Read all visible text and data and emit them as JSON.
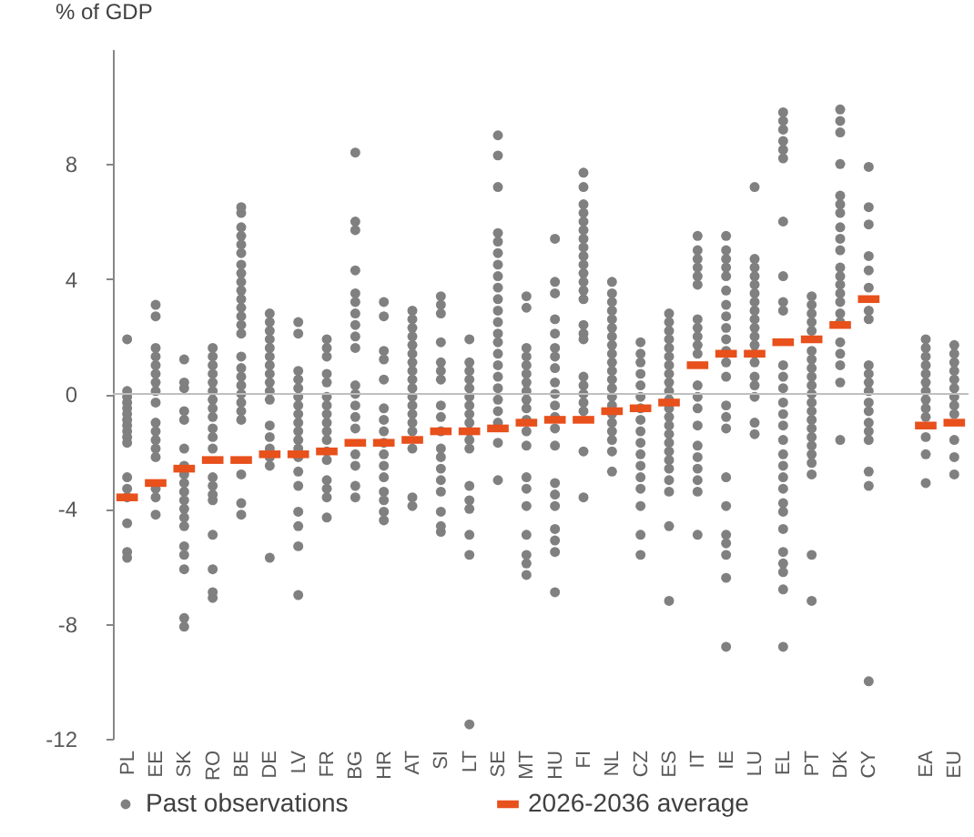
{
  "chart_data": {
    "type": "scatter",
    "ylabel": "% of GDP",
    "categories": [
      "PL",
      "EE",
      "SK",
      "RO",
      "BE",
      "DE",
      "LV",
      "FR",
      "BG",
      "HR",
      "AT",
      "SI",
      "LT",
      "SE",
      "MT",
      "HU",
      "FI",
      "NL",
      "CZ",
      "ES",
      "IT",
      "IE",
      "LU",
      "EL",
      "PT",
      "DK",
      "CY",
      null,
      "EA",
      "EU"
    ],
    "ylim": [
      -12,
      12
    ],
    "yticks": [
      -12,
      -8,
      -4,
      0,
      4,
      8
    ],
    "grid": false,
    "legend": "bottom",
    "ref_lines": [
      {
        "axis": "y",
        "value": 0,
        "color": "#bfbfbf"
      }
    ],
    "series": [
      {
        "name": "Past observations",
        "color": "#808080",
        "marker": "circle",
        "x": [
          "PL",
          "PL",
          "PL",
          "PL",
          "PL",
          "PL",
          "PL",
          "PL",
          "PL",
          "PL",
          "PL",
          "PL",
          "PL",
          "PL",
          "PL",
          "PL",
          "PL",
          "EE",
          "EE",
          "EE",
          "EE",
          "EE",
          "EE",
          "EE",
          "EE",
          "EE",
          "EE",
          "EE",
          "EE",
          "EE",
          "EE",
          "EE",
          "EE",
          "EE",
          "SK",
          "SK",
          "SK",
          "SK",
          "SK",
          "SK",
          "SK",
          "SK",
          "SK",
          "SK",
          "SK",
          "SK",
          "SK",
          "SK",
          "SK",
          "SK",
          "SK",
          "SK",
          "SK",
          "RO",
          "RO",
          "RO",
          "RO",
          "RO",
          "RO",
          "RO",
          "RO",
          "RO",
          "RO",
          "RO",
          "RO",
          "RO",
          "RO",
          "RO",
          "RO",
          "RO",
          "RO",
          "RO",
          "RO",
          "BE",
          "BE",
          "BE",
          "BE",
          "BE",
          "BE",
          "BE",
          "BE",
          "BE",
          "BE",
          "BE",
          "BE",
          "BE",
          "BE",
          "BE",
          "BE",
          "BE",
          "BE",
          "BE",
          "BE",
          "BE",
          "BE",
          "BE",
          "BE",
          "BE",
          "BE",
          "DE",
          "DE",
          "DE",
          "DE",
          "DE",
          "DE",
          "DE",
          "DE",
          "DE",
          "DE",
          "DE",
          "DE",
          "DE",
          "DE",
          "DE",
          "DE",
          "DE",
          "LV",
          "LV",
          "LV",
          "LV",
          "LV",
          "LV",
          "LV",
          "LV",
          "LV",
          "LV",
          "LV",
          "LV",
          "LV",
          "LV",
          "LV",
          "LV",
          "LV",
          "LV",
          "LV",
          "FR",
          "FR",
          "FR",
          "FR",
          "FR",
          "FR",
          "FR",
          "FR",
          "FR",
          "FR",
          "FR",
          "FR",
          "FR",
          "FR",
          "FR",
          "FR",
          "FR",
          "BG",
          "BG",
          "BG",
          "BG",
          "BG",
          "BG",
          "BG",
          "BG",
          "BG",
          "BG",
          "BG",
          "BG",
          "BG",
          "BG",
          "BG",
          "BG",
          "BG",
          "BG",
          "BG",
          "HR",
          "HR",
          "HR",
          "HR",
          "HR",
          "HR",
          "HR",
          "HR",
          "HR",
          "HR",
          "HR",
          "HR",
          "HR",
          "HR",
          "HR",
          "HR",
          "AT",
          "AT",
          "AT",
          "AT",
          "AT",
          "AT",
          "AT",
          "AT",
          "AT",
          "AT",
          "AT",
          "AT",
          "AT",
          "AT",
          "AT",
          "AT",
          "AT",
          "AT",
          "SI",
          "SI",
          "SI",
          "SI",
          "SI",
          "SI",
          "SI",
          "SI",
          "SI",
          "SI",
          "SI",
          "SI",
          "SI",
          "SI",
          "SI",
          "SI",
          "SI",
          "SI",
          "LT",
          "LT",
          "LT",
          "LT",
          "LT",
          "LT",
          "LT",
          "LT",
          "LT",
          "LT",
          "LT",
          "LT",
          "LT",
          "LT",
          "LT",
          "LT",
          "LT",
          "LT",
          "SE",
          "SE",
          "SE",
          "SE",
          "SE",
          "SE",
          "SE",
          "SE",
          "SE",
          "SE",
          "SE",
          "SE",
          "SE",
          "SE",
          "SE",
          "SE",
          "SE",
          "SE",
          "SE",
          "SE",
          "SE",
          "SE",
          "SE",
          "MT",
          "MT",
          "MT",
          "MT",
          "MT",
          "MT",
          "MT",
          "MT",
          "MT",
          "MT",
          "MT",
          "MT",
          "MT",
          "MT",
          "MT",
          "MT",
          "MT",
          "MT",
          "MT",
          "MT",
          "HU",
          "HU",
          "HU",
          "HU",
          "HU",
          "HU",
          "HU",
          "HU",
          "HU",
          "HU",
          "HU",
          "HU",
          "HU",
          "HU",
          "HU",
          "HU",
          "HU",
          "HU",
          "HU",
          "HU",
          "HU",
          "FI",
          "FI",
          "FI",
          "FI",
          "FI",
          "FI",
          "FI",
          "FI",
          "FI",
          "FI",
          "FI",
          "FI",
          "FI",
          "FI",
          "FI",
          "FI",
          "FI",
          "FI",
          "FI",
          "FI",
          "FI",
          "FI",
          "FI",
          "FI",
          "NL",
          "NL",
          "NL",
          "NL",
          "NL",
          "NL",
          "NL",
          "NL",
          "NL",
          "NL",
          "NL",
          "NL",
          "NL",
          "NL",
          "NL",
          "NL",
          "NL",
          "NL",
          "NL",
          "NL",
          "NL",
          "CZ",
          "CZ",
          "CZ",
          "CZ",
          "CZ",
          "CZ",
          "CZ",
          "CZ",
          "CZ",
          "CZ",
          "CZ",
          "CZ",
          "CZ",
          "CZ",
          "CZ",
          "CZ",
          "CZ",
          "ES",
          "ES",
          "ES",
          "ES",
          "ES",
          "ES",
          "ES",
          "ES",
          "ES",
          "ES",
          "ES",
          "ES",
          "ES",
          "ES",
          "ES",
          "ES",
          "ES",
          "ES",
          "ES",
          "ES",
          "ES",
          "ES",
          "ES",
          "IT",
          "IT",
          "IT",
          "IT",
          "IT",
          "IT",
          "IT",
          "IT",
          "IT",
          "IT",
          "IT",
          "IT",
          "IT",
          "IT",
          "IT",
          "IT",
          "IT",
          "IT",
          "IT",
          "IT",
          "IT",
          "IE",
          "IE",
          "IE",
          "IE",
          "IE",
          "IE",
          "IE",
          "IE",
          "IE",
          "IE",
          "IE",
          "IE",
          "IE",
          "IE",
          "IE",
          "IE",
          "IE",
          "IE",
          "IE",
          "IE",
          "IE",
          "IE",
          "IE",
          "LU",
          "LU",
          "LU",
          "LU",
          "LU",
          "LU",
          "LU",
          "LU",
          "LU",
          "LU",
          "LU",
          "LU",
          "LU",
          "LU",
          "LU",
          "LU",
          "LU",
          "LU",
          "LU",
          "EL",
          "EL",
          "EL",
          "EL",
          "EL",
          "EL",
          "EL",
          "EL",
          "EL",
          "EL",
          "EL",
          "EL",
          "EL",
          "EL",
          "EL",
          "EL",
          "EL",
          "EL",
          "EL",
          "EL",
          "EL",
          "EL",
          "EL",
          "EL",
          "EL",
          "EL",
          "EL",
          "EL",
          "EL",
          "PT",
          "PT",
          "PT",
          "PT",
          "PT",
          "PT",
          "PT",
          "PT",
          "PT",
          "PT",
          "PT",
          "PT",
          "PT",
          "PT",
          "PT",
          "PT",
          "PT",
          "PT",
          "PT",
          "PT",
          "PT",
          "PT",
          "DK",
          "DK",
          "DK",
          "DK",
          "DK",
          "DK",
          "DK",
          "DK",
          "DK",
          "DK",
          "DK",
          "DK",
          "DK",
          "DK",
          "DK",
          "DK",
          "DK",
          "DK",
          "DK",
          "DK",
          "DK",
          "DK",
          "CY",
          "CY",
          "CY",
          "CY",
          "CY",
          "CY",
          "CY",
          "CY",
          "CY",
          "CY",
          "CY",
          "CY",
          "CY",
          "CY",
          "CY",
          "CY",
          "CY",
          "CY",
          "CY",
          "CY",
          "EA",
          "EA",
          "EA",
          "EA",
          "EA",
          "EA",
          "EA",
          "EA",
          "EA",
          "EA",
          "EA",
          "EA",
          "EA",
          "EU",
          "EU",
          "EU",
          "EU",
          "EU",
          "EU",
          "EU",
          "EU",
          "EU",
          "EU",
          "EU",
          "EU"
        ],
        "values": [
          1.9,
          0.1,
          -0.1,
          -0.3,
          -0.5,
          -0.7,
          -0.9,
          -1.1,
          -1.3,
          -1.5,
          -1.7,
          -2.9,
          -3.3,
          -3.6,
          -4.5,
          -5.5,
          -5.7,
          3.1,
          2.7,
          1.6,
          1.3,
          1.0,
          0.7,
          0.4,
          0.1,
          -0.3,
          -1.0,
          -1.3,
          -1.6,
          -1.9,
          -2.2,
          -3.3,
          -3.6,
          -4.2,
          1.2,
          0.4,
          0.2,
          -0.6,
          -0.9,
          -1.9,
          -2.5,
          -2.8,
          -3.1,
          -3.4,
          -3.7,
          -4.0,
          -4.3,
          -4.6,
          -5.3,
          -5.6,
          -6.1,
          -7.8,
          -8.1,
          1.6,
          1.3,
          1.0,
          0.7,
          0.4,
          0.1,
          -0.2,
          -0.5,
          -0.8,
          -1.2,
          -1.5,
          -1.9,
          -2.9,
          -3.2,
          -3.5,
          -3.7,
          -4.9,
          -6.1,
          -6.9,
          -7.1,
          6.5,
          6.3,
          5.8,
          5.5,
          5.2,
          4.9,
          4.5,
          4.2,
          3.9,
          3.6,
          3.3,
          3.0,
          2.7,
          2.4,
          2.1,
          1.3,
          0.9,
          0.6,
          0.3,
          0.0,
          -0.3,
          -0.6,
          -0.9,
          -2.8,
          -3.8,
          -4.2,
          2.8,
          2.5,
          2.2,
          1.9,
          1.6,
          1.3,
          1.0,
          0.7,
          0.4,
          0.1,
          -0.2,
          -1.1,
          -1.5,
          -1.9,
          -2.2,
          -2.5,
          -5.7,
          2.5,
          2.1,
          0.8,
          0.5,
          0.2,
          -0.1,
          -0.4,
          -0.7,
          -1.0,
          -1.3,
          -1.6,
          -1.9,
          -2.2,
          -2.7,
          -3.2,
          -4.1,
          -4.6,
          -5.3,
          -7.0,
          1.9,
          1.6,
          1.3,
          0.7,
          0.4,
          -0.1,
          -0.4,
          -0.7,
          -1.0,
          -1.3,
          -1.6,
          -2.0,
          -2.3,
          -3.0,
          -3.3,
          -3.6,
          -4.3,
          8.4,
          6.0,
          5.7,
          4.3,
          3.5,
          3.2,
          2.8,
          2.4,
          2.0,
          1.6,
          0.3,
          0.0,
          -0.4,
          -0.8,
          -1.2,
          -2.1,
          -2.5,
          -3.2,
          -3.6,
          3.2,
          2.7,
          1.5,
          1.2,
          0.5,
          -0.5,
          -0.9,
          -1.3,
          -1.7,
          -2.1,
          -2.5,
          -2.9,
          -3.4,
          -3.7,
          -4.1,
          -4.4,
          2.9,
          2.6,
          2.3,
          2.0,
          1.7,
          1.4,
          1.1,
          0.8,
          0.5,
          0.2,
          -0.1,
          -0.4,
          -0.7,
          -1.0,
          -1.3,
          -1.9,
          -3.6,
          -3.9,
          3.4,
          3.1,
          2.8,
          1.8,
          1.1,
          0.8,
          0.5,
          -0.4,
          -0.8,
          -1.3,
          -1.9,
          -2.2,
          -2.6,
          -3.0,
          -3.4,
          -4.1,
          -4.6,
          -4.8,
          1.9,
          1.1,
          0.8,
          0.5,
          0.2,
          -0.1,
          -0.4,
          -0.7,
          -1.0,
          -1.3,
          -1.6,
          -1.9,
          -3.2,
          -3.7,
          -4.0,
          -4.9,
          -5.6,
          -11.5,
          9.0,
          8.3,
          7.2,
          5.6,
          5.3,
          4.9,
          4.5,
          4.1,
          3.7,
          3.3,
          2.9,
          2.5,
          2.1,
          1.8,
          1.4,
          1.0,
          0.6,
          0.2,
          -0.2,
          -0.6,
          -1.0,
          -1.7,
          -3.0,
          3.4,
          3.0,
          1.6,
          1.3,
          1.0,
          0.7,
          0.4,
          0.1,
          -0.2,
          -0.5,
          -0.9,
          -1.3,
          -1.8,
          -2.9,
          -3.3,
          -3.9,
          -4.9,
          -5.6,
          -5.9,
          -6.3,
          5.4,
          3.9,
          3.5,
          2.6,
          2.1,
          1.6,
          1.3,
          0.9,
          0.4,
          0.0,
          -0.4,
          -0.8,
          -1.2,
          -1.8,
          -3.1,
          -3.5,
          -3.9,
          -4.7,
          -5.1,
          -5.5,
          -6.9,
          7.7,
          7.2,
          6.6,
          6.3,
          6.0,
          5.7,
          5.4,
          5.1,
          4.8,
          4.5,
          4.2,
          3.9,
          3.6,
          3.3,
          2.4,
          2.1,
          1.9,
          0.6,
          0.3,
          0.0,
          -0.3,
          -0.6,
          -2.0,
          -3.6,
          3.9,
          3.5,
          3.2,
          2.9,
          2.6,
          2.3,
          2.0,
          1.7,
          1.4,
          1.1,
          0.8,
          0.5,
          0.2,
          -0.1,
          -0.4,
          -0.7,
          -1.0,
          -1.3,
          -1.6,
          -2.0,
          -2.7,
          1.8,
          1.4,
          1.1,
          0.7,
          0.3,
          -0.1,
          -0.5,
          -0.9,
          -1.3,
          -1.7,
          -2.1,
          -2.5,
          -2.9,
          -3.3,
          -3.9,
          -4.9,
          -5.6,
          2.8,
          2.5,
          2.2,
          1.9,
          1.6,
          1.3,
          1.0,
          0.7,
          0.4,
          0.1,
          -0.2,
          -0.5,
          -0.8,
          -1.1,
          -1.4,
          -1.7,
          -2.0,
          -2.3,
          -2.6,
          -3.0,
          -3.4,
          -4.6,
          -7.2,
          5.5,
          5.0,
          4.7,
          4.4,
          4.1,
          3.8,
          2.6,
          2.3,
          2.0,
          1.7,
          1.4,
          0.3,
          -0.1,
          -0.5,
          -1.1,
          -1.8,
          -2.2,
          -2.6,
          -3.0,
          -3.4,
          -4.9,
          5.5,
          5.0,
          4.7,
          4.4,
          4.1,
          3.6,
          3.1,
          2.7,
          2.3,
          1.9,
          1.5,
          1.1,
          0.6,
          -0.4,
          -0.8,
          -1.2,
          -2.9,
          -3.9,
          -4.9,
          -5.2,
          -5.6,
          -6.4,
          -8.8,
          7.2,
          4.7,
          4.4,
          4.1,
          3.8,
          3.5,
          3.2,
          2.9,
          2.6,
          2.3,
          2.0,
          1.7,
          1.4,
          1.1,
          0.6,
          0.3,
          -0.1,
          -1.0,
          -1.4,
          9.8,
          9.5,
          9.2,
          8.8,
          8.5,
          8.2,
          6.0,
          4.1,
          3.2,
          2.9,
          1.0,
          0.6,
          0.2,
          -0.3,
          -0.7,
          -1.1,
          -1.6,
          -2.1,
          -2.5,
          -2.9,
          -3.3,
          -3.8,
          -4.1,
          -4.7,
          -5.5,
          -5.9,
          -6.2,
          -6.8,
          -8.8,
          3.4,
          3.1,
          2.8,
          2.5,
          2.2,
          1.5,
          1.2,
          0.9,
          0.6,
          0.3,
          0.0,
          -0.3,
          -0.6,
          -0.9,
          -1.2,
          -1.5,
          -1.8,
          -2.1,
          -2.4,
          -2.8,
          -5.6,
          -7.2,
          9.9,
          9.5,
          9.1,
          8.0,
          6.9,
          6.6,
          6.3,
          5.8,
          5.4,
          5.0,
          4.4,
          4.1,
          3.8,
          3.5,
          3.2,
          2.8,
          2.5,
          1.8,
          1.4,
          1.0,
          0.4,
          -1.6,
          7.9,
          6.5,
          5.9,
          4.8,
          4.3,
          3.7,
          2.9,
          2.6,
          1.0,
          0.7,
          0.4,
          0.1,
          -0.3,
          -0.6,
          -1.0,
          -1.3,
          -1.6,
          -2.7,
          -3.2,
          -10.0,
          1.9,
          1.6,
          1.3,
          1.0,
          0.7,
          0.4,
          0.1,
          -0.2,
          -0.5,
          -0.8,
          -1.5,
          -2.1,
          -3.1,
          1.7,
          1.4,
          1.1,
          0.8,
          0.5,
          0.2,
          -0.1,
          -0.4,
          -0.7,
          -1.6,
          -2.2,
          -2.8
        ]
      },
      {
        "name": "2026-2036 average",
        "color": "#e8501c",
        "marker": "square",
        "x": [
          "PL",
          "EE",
          "SK",
          "RO",
          "BE",
          "DE",
          "LV",
          "FR",
          "BG",
          "HR",
          "AT",
          "SI",
          "LT",
          "SE",
          "MT",
          "HU",
          "FI",
          "NL",
          "CZ",
          "ES",
          "IT",
          "IE",
          "LU",
          "EL",
          "PT",
          "DK",
          "CY",
          "EA",
          "EU"
        ],
        "values": [
          -3.6,
          -3.1,
          -2.6,
          -2.3,
          -2.3,
          -2.1,
          -2.1,
          -2.0,
          -1.7,
          -1.7,
          -1.6,
          -1.3,
          -1.3,
          -1.2,
          -1.0,
          -0.9,
          -0.9,
          -0.6,
          -0.5,
          -0.3,
          1.0,
          1.4,
          1.4,
          1.8,
          1.9,
          2.4,
          3.3,
          -1.1,
          -1.0
        ]
      }
    ]
  }
}
